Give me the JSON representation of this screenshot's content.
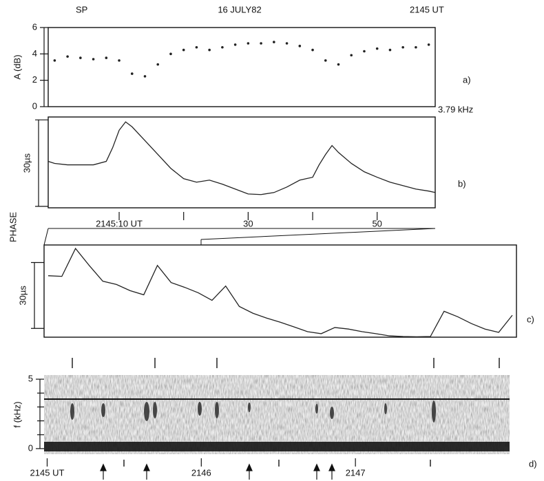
{
  "figure": {
    "station": "SP",
    "date": "16 JULY82",
    "time": "2145 UT",
    "phase_label": "PHASE"
  },
  "chart_data": [
    {
      "type": "scatter",
      "panel_label": "a)",
      "ylabel": "A (dB)",
      "annotation": "3.79 kHz",
      "color": "#222222",
      "x": [
        0,
        2,
        4,
        6,
        8,
        10,
        12,
        14,
        16,
        18,
        20,
        22,
        24,
        26,
        28,
        30,
        32,
        34,
        36,
        38,
        40,
        42,
        44,
        46,
        48,
        50,
        52,
        54,
        56,
        58
      ],
      "values": [
        3.5,
        3.8,
        3.7,
        3.6,
        3.7,
        3.5,
        2.5,
        2.3,
        3.2,
        4.0,
        4.3,
        4.5,
        4.3,
        4.5,
        4.7,
        4.8,
        4.8,
        4.9,
        4.8,
        4.6,
        4.3,
        3.5,
        3.2,
        3.9,
        4.2,
        4.4,
        4.3,
        4.5,
        4.5,
        4.7
      ],
      "xlim": [
        -1,
        59
      ],
      "ylim": [
        0,
        6
      ],
      "yticks": [
        0,
        2,
        4,
        6
      ]
    },
    {
      "type": "line",
      "panel_label": "b)",
      "scale_label": "30µs",
      "scale_bar": [
        0,
        30
      ],
      "color": "#222222",
      "x": [
        -1,
        0,
        2,
        4,
        6,
        8,
        9,
        10,
        11,
        12,
        14,
        16,
        18,
        20,
        22,
        24,
        26,
        28,
        30,
        32,
        34,
        36,
        38,
        40,
        41,
        42,
        43,
        44,
        46,
        48,
        50,
        52,
        54,
        56,
        58,
        59
      ],
      "values": [
        15.6,
        14.9,
        14.4,
        14.4,
        14.4,
        15.6,
        20.4,
        26.4,
        29.3,
        27.6,
        22.8,
        18,
        13.2,
        9.6,
        8.4,
        9.1,
        7.7,
        6,
        4.3,
        4.1,
        4.8,
        6.7,
        9.1,
        10.1,
        14.4,
        18,
        21.1,
        18.7,
        14.9,
        12,
        10.1,
        8.4,
        7.2,
        6,
        5.3,
        4.8
      ],
      "xlim": [
        -1,
        59
      ],
      "ylim": [
        -0.5,
        31
      ],
      "xticks": [
        {
          "value": 10,
          "label": "2145:10 UT"
        },
        30,
        50
      ],
      "minor_xticks": [
        20,
        40
      ]
    },
    {
      "type": "line",
      "panel_label": "c)",
      "scale_label": "30µs",
      "scale_bar": [
        0,
        30
      ],
      "color": "#222222",
      "values": [
        24.0,
        23.7,
        36.4,
        28.7,
        21.5,
        20.0,
        17.2,
        15.3,
        28.7,
        20.9,
        18.7,
        16.2,
        12.8,
        19.3,
        10.0,
        6.9,
        4.7,
        2.8,
        0.7,
        -1.5,
        -2.4,
        0.4,
        -0.3,
        -1.5,
        -2.4,
        -3.4,
        -3.7,
        -3.8,
        -3.7,
        7.8,
        5.3,
        2.2,
        -0.3,
        -1.8,
        6.0
      ],
      "ylim": [
        -4,
        38
      ]
    },
    {
      "type": "spectrogram",
      "panel_label": "d)",
      "ylabel": "f (kHz)",
      "xlim": [
        -0.02,
        3
      ],
      "ylim": [
        -0.4,
        5.3
      ],
      "yticks": [
        0,
        5
      ],
      "minor_yticks": [
        1,
        2,
        3,
        4
      ],
      "xticks": [
        {
          "value": 0,
          "label": "2145 UT"
        },
        {
          "value": 1,
          "label": "2146"
        },
        {
          "value": 2,
          "label": "2147"
        }
      ]
    }
  ]
}
